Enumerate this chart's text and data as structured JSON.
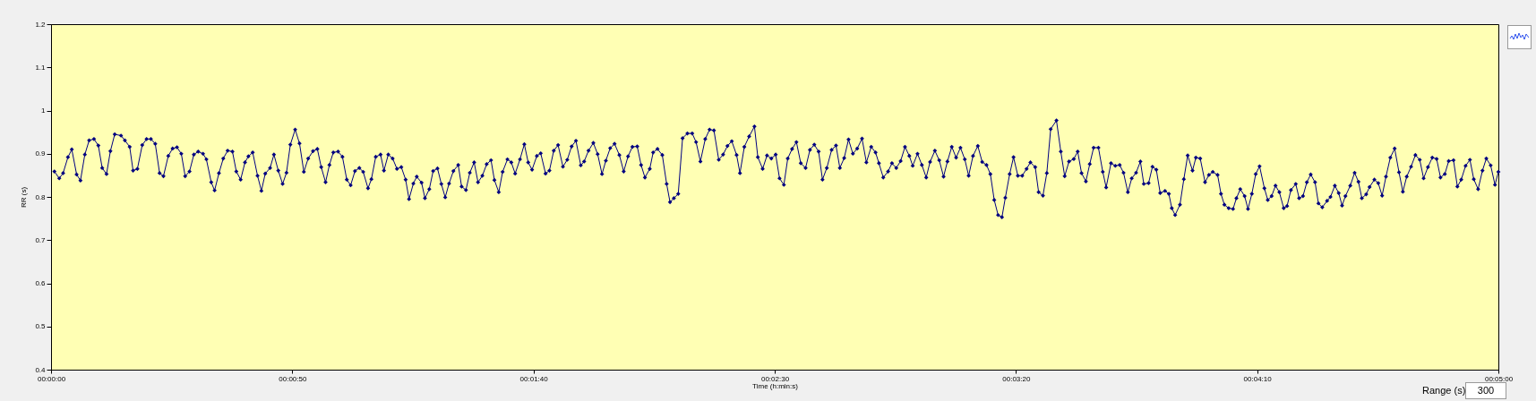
{
  "chart_data": {
    "type": "line",
    "xlabel": "Time (h:min:s)",
    "ylabel": "RR (s)",
    "xlim": [
      0,
      300
    ],
    "ylim": [
      0.4,
      1.2
    ],
    "xticks": [
      {
        "value": 0,
        "label": "00:00:00"
      },
      {
        "value": 50,
        "label": "00:00:50"
      },
      {
        "value": 100,
        "label": "00:01:40"
      },
      {
        "value": 150,
        "label": "00:02:30"
      },
      {
        "value": 200,
        "label": "00:03:20"
      },
      {
        "value": 250,
        "label": "00:04:10"
      },
      {
        "value": 300,
        "label": "00:05:00"
      }
    ],
    "yticks": [
      0.4,
      0.5,
      0.6,
      0.7,
      0.8,
      0.9,
      1,
      1.1,
      1.2
    ],
    "grid": false,
    "marker": "diamond",
    "line_style": "solid",
    "annotations": [
      "Range (s)",
      "300"
    ],
    "series": [
      {
        "color": "#000080",
        "x": [
          0.7,
          1.7,
          2.5,
          3.5,
          4.3,
          5.3,
          6.1,
          7.0,
          7.9,
          8.9,
          9.8,
          10.6,
          11.5,
          12.3,
          13.2,
          14.5,
          15.3,
          16.3,
          17.0,
          17.9,
          18.9,
          19.8,
          20.7,
          21.6,
          22.5,
          23.3,
          24.3,
          25.2,
          26.1,
          27.0,
          27.8,
          28.7,
          29.6,
          30.5,
          31.5,
          32.2,
          33.2,
          33.9,
          34.8,
          35.7,
          36.6,
          37.6,
          38.4,
          39.3,
          40.2,
          40.9,
          41.8,
          42.8,
          43.6,
          44.4,
          45.4,
          46.2,
          47.1,
          48.0,
          48.8,
          49.6,
          50.6,
          51.5,
          52.4,
          53.3,
          54.3,
          55.2,
          56.0,
          56.9,
          57.7,
          58.5,
          59.5,
          60.4,
          61.3,
          62.1,
          63.0,
          63.9,
          64.7,
          65.7,
          66.4,
          67.3,
          68.3,
          69.0,
          69.9,
          70.8,
          71.7,
          72.6,
          73.5,
          74.2,
          75.1,
          75.8,
          76.8,
          77.5,
          78.4,
          79.2,
          80.1,
          80.9,
          81.7,
          82.5,
          83.4,
          84.4,
          85.1,
          86.0,
          86.8,
          87.7,
          88.5,
          89.4,
          90.3,
          91.2,
          91.9,
          92.8,
          93.6,
          94.6,
          95.4,
          96.2,
          97.2,
          98.1,
          98.9,
          99.7,
          100.7,
          101.5,
          102.5,
          103.3,
          104.2,
          105.1,
          106.1,
          107.0,
          107.9,
          108.8,
          109.8,
          110.5,
          111.4,
          112.4,
          113.3,
          114.2,
          115.0,
          115.9,
          116.8,
          117.8,
          118.7,
          119.6,
          120.5,
          121.5,
          122.3,
          123.1,
          124.1,
          124.8,
          125.7,
          126.7,
          127.6,
          128.3,
          129.1,
          130.0,
          130.9,
          131.9,
          132.9,
          133.7,
          134.6,
          135.6,
          136.5,
          137.4,
          138.4,
          139.3,
          140.2,
          141.1,
          142.1,
          142.8,
          143.7,
          144.7,
          145.8,
          146.5,
          147.5,
          148.4,
          149.3,
          150.2,
          151.0,
          151.9,
          152.7,
          153.6,
          154.5,
          155.4,
          156.4,
          157.3,
          158.2,
          159.1,
          159.9,
          160.8,
          161.8,
          162.7,
          163.5,
          164.4,
          165.3,
          166.2,
          167.1,
          168.1,
          169.0,
          170.0,
          170.9,
          171.6,
          172.5,
          173.5,
          174.3,
          175.2,
          176.1,
          177.0,
          177.9,
          178.6,
          179.6,
          180.5,
          181.4,
          182.2,
          183.2,
          184.1,
          185.0,
          185.8,
          186.7,
          187.6,
          188.5,
          189.4,
          190.2,
          191.1,
          192.1,
          193.0,
          193.9,
          194.7,
          195.5,
          196.3,
          197.1,
          197.8,
          198.7,
          199.5,
          200.4,
          201.3,
          202.2,
          203.0,
          204.0,
          204.7,
          205.6,
          206.4,
          207.2,
          208.4,
          209.3,
          210.1,
          211.0,
          212.0,
          212.8,
          213.6,
          214.5,
          215.3,
          216.1,
          217.1,
          218.0,
          218.7,
          219.7,
          220.6,
          221.5,
          222.3,
          223.2,
          224.0,
          224.9,
          225.8,
          226.5,
          227.5,
          228.3,
          229.1,
          229.9,
          230.9,
          231.7,
          232.3,
          233.0,
          234.0,
          234.8,
          235.6,
          236.6,
          237.3,
          238.2,
          239.2,
          240.0,
          240.8,
          241.8,
          242.5,
          243.2,
          244.1,
          245.0,
          245.7,
          246.5,
          247.4,
          248.1,
          248.9,
          249.7,
          250.5,
          251.5,
          252.2,
          253.0,
          253.8,
          254.6,
          255.5,
          256.2,
          257.0,
          258.0,
          258.7,
          259.5,
          260.3,
          261.1,
          262.0,
          262.7,
          263.5,
          264.5,
          265.2,
          266.1,
          266.9,
          267.6,
          268.3,
          269.3,
          270.2,
          271.0,
          271.7,
          272.6,
          273.3,
          274.3,
          275.1,
          275.9,
          276.7,
          277.6,
          278.5,
          279.4,
          280.2,
          281.0,
          281.9,
          282.8,
          283.7,
          284.5,
          285.4,
          286.3,
          287.2,
          288.0,
          288.9,
          289.7,
          290.7,
          291.5,
          292.3,
          293.2,
          294.1,
          294.9,
          295.8,
          296.7,
          297.5,
          298.4,
          299.3,
          300
        ],
        "values": [
          0.859,
          0.843,
          0.855,
          0.892,
          0.91,
          0.852,
          0.838,
          0.898,
          0.931,
          0.934,
          0.919,
          0.867,
          0.853,
          0.906,
          0.945,
          0.942,
          0.931,
          0.916,
          0.861,
          0.865,
          0.92,
          0.934,
          0.934,
          0.923,
          0.855,
          0.848,
          0.895,
          0.912,
          0.915,
          0.9,
          0.848,
          0.859,
          0.898,
          0.905,
          0.9,
          0.887,
          0.834,
          0.815,
          0.855,
          0.889,
          0.907,
          0.905,
          0.859,
          0.84,
          0.88,
          0.894,
          0.903,
          0.849,
          0.814,
          0.854,
          0.867,
          0.898,
          0.861,
          0.83,
          0.856,
          0.921,
          0.956,
          0.924,
          0.858,
          0.889,
          0.906,
          0.911,
          0.869,
          0.834,
          0.874,
          0.903,
          0.905,
          0.893,
          0.84,
          0.827,
          0.86,
          0.867,
          0.858,
          0.82,
          0.841,
          0.893,
          0.898,
          0.861,
          0.898,
          0.889,
          0.865,
          0.869,
          0.84,
          0.795,
          0.831,
          0.847,
          0.833,
          0.797,
          0.818,
          0.86,
          0.866,
          0.83,
          0.799,
          0.831,
          0.86,
          0.874,
          0.824,
          0.816,
          0.856,
          0.88,
          0.834,
          0.849,
          0.876,
          0.885,
          0.839,
          0.811,
          0.858,
          0.887,
          0.88,
          0.854,
          0.887,
          0.922,
          0.88,
          0.863,
          0.895,
          0.901,
          0.854,
          0.861,
          0.907,
          0.92,
          0.87,
          0.886,
          0.917,
          0.93,
          0.873,
          0.882,
          0.907,
          0.925,
          0.899,
          0.853,
          0.884,
          0.913,
          0.923,
          0.897,
          0.859,
          0.894,
          0.916,
          0.917,
          0.874,
          0.845,
          0.865,
          0.903,
          0.911,
          0.897,
          0.83,
          0.788,
          0.797,
          0.807,
          0.936,
          0.947,
          0.947,
          0.927,
          0.882,
          0.934,
          0.956,
          0.954,
          0.886,
          0.898,
          0.918,
          0.929,
          0.897,
          0.855,
          0.916,
          0.94,
          0.963,
          0.892,
          0.865,
          0.896,
          0.889,
          0.898,
          0.843,
          0.828,
          0.889,
          0.911,
          0.927,
          0.878,
          0.867,
          0.909,
          0.921,
          0.905,
          0.84,
          0.867,
          0.909,
          0.919,
          0.867,
          0.89,
          0.933,
          0.9,
          0.912,
          0.935,
          0.88,
          0.916,
          0.903,
          0.878,
          0.845,
          0.859,
          0.878,
          0.867,
          0.883,
          0.916,
          0.895,
          0.872,
          0.9,
          0.874,
          0.845,
          0.881,
          0.907,
          0.885,
          0.847,
          0.882,
          0.916,
          0.891,
          0.914,
          0.887,
          0.849,
          0.895,
          0.918,
          0.881,
          0.874,
          0.853,
          0.793,
          0.758,
          0.753,
          0.798,
          0.853,
          0.892,
          0.849,
          0.849,
          0.865,
          0.88,
          0.869,
          0.811,
          0.803,
          0.855,
          0.957,
          0.977,
          0.905,
          0.848,
          0.882,
          0.888,
          0.905,
          0.855,
          0.836,
          0.876,
          0.914,
          0.914,
          0.858,
          0.822,
          0.878,
          0.872,
          0.874,
          0.856,
          0.811,
          0.843,
          0.856,
          0.882,
          0.83,
          0.832,
          0.87,
          0.863,
          0.809,
          0.814,
          0.807,
          0.774,
          0.758,
          0.782,
          0.841,
          0.896,
          0.861,
          0.891,
          0.889,
          0.834,
          0.851,
          0.858,
          0.851,
          0.807,
          0.782,
          0.774,
          0.772,
          0.797,
          0.818,
          0.802,
          0.772,
          0.807,
          0.853,
          0.871,
          0.82,
          0.793,
          0.802,
          0.826,
          0.811,
          0.774,
          0.779,
          0.816,
          0.83,
          0.797,
          0.802,
          0.834,
          0.852,
          0.834,
          0.785,
          0.776,
          0.791,
          0.8,
          0.826,
          0.809,
          0.78,
          0.802,
          0.826,
          0.856,
          0.835,
          0.797,
          0.806,
          0.823,
          0.84,
          0.832,
          0.803,
          0.847,
          0.891,
          0.912,
          0.857,
          0.812,
          0.847,
          0.87,
          0.897,
          0.886,
          0.843,
          0.869,
          0.891,
          0.888,
          0.845,
          0.853,
          0.883,
          0.885,
          0.824,
          0.84,
          0.872,
          0.886,
          0.841,
          0.818,
          0.861,
          0.889,
          0.873,
          0.828,
          0.858
        ]
      }
    ]
  }
}
